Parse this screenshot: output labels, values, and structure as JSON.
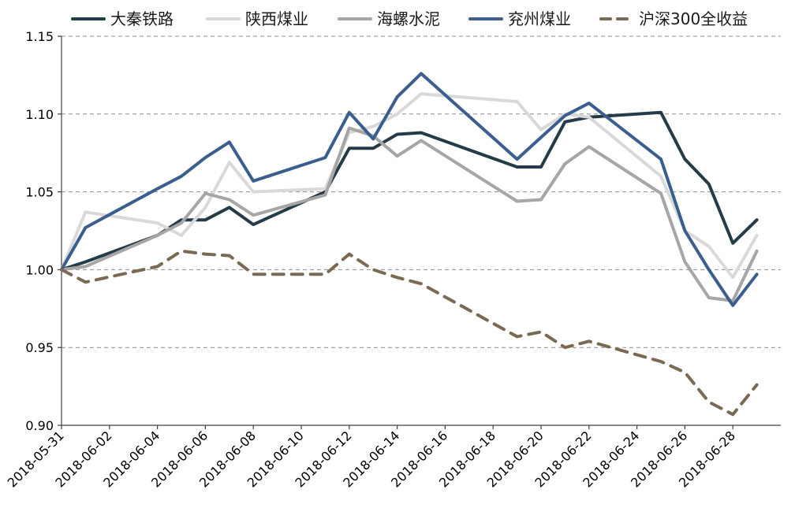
{
  "chart_data": {
    "type": "line",
    "title": "",
    "xlabel": "",
    "ylabel": "",
    "ylim": [
      0.9,
      1.15
    ],
    "yticks": [
      "0.90",
      "0.95",
      "1.00",
      "1.05",
      "1.10",
      "1.15"
    ],
    "ytick_values": [
      0.9,
      0.95,
      1.0,
      1.05,
      1.1,
      1.15
    ],
    "xticks": [
      "2018-05-31",
      "2018-06-02",
      "2018-06-04",
      "2018-06-06",
      "2018-06-08",
      "2018-06-10",
      "2018-06-12",
      "2018-06-14",
      "2018-06-16",
      "2018-06-18",
      "2018-06-20",
      "2018-06-22",
      "2018-06-24",
      "2018-06-26",
      "2018-06-28"
    ],
    "grid": "horizontal dashed",
    "legend_position": "top",
    "x": [
      "2018-05-31",
      "2018-06-01",
      "2018-06-04",
      "2018-06-05",
      "2018-06-06",
      "2018-06-07",
      "2018-06-08",
      "2018-06-11",
      "2018-06-12",
      "2018-06-13",
      "2018-06-14",
      "2018-06-15",
      "2018-06-19",
      "2018-06-20",
      "2018-06-21",
      "2018-06-22",
      "2018-06-25",
      "2018-06-26",
      "2018-06-27",
      "2018-06-28",
      "2018-06-29"
    ],
    "series": [
      {
        "name": "大秦铁路",
        "color": "#243b4a",
        "style": "solid",
        "values": [
          1.0,
          1.005,
          1.022,
          1.032,
          1.032,
          1.04,
          1.029,
          1.05,
          1.078,
          1.078,
          1.087,
          1.088,
          1.066,
          1.066,
          1.095,
          1.098,
          1.101,
          1.071,
          1.055,
          1.017,
          1.032
        ]
      },
      {
        "name": "陕西煤业",
        "color": "#d9d9d9",
        "style": "solid",
        "values": [
          1.0,
          1.037,
          1.03,
          1.022,
          1.04,
          1.069,
          1.05,
          1.052,
          1.088,
          1.092,
          1.1,
          1.113,
          1.108,
          1.09,
          1.1,
          1.098,
          1.06,
          1.025,
          1.015,
          0.995,
          1.022
        ]
      },
      {
        "name": "海螺水泥",
        "color": "#a6a6a6",
        "style": "solid",
        "values": [
          1.0,
          1.002,
          1.022,
          1.03,
          1.049,
          1.045,
          1.035,
          1.048,
          1.091,
          1.086,
          1.073,
          1.083,
          1.044,
          1.045,
          1.068,
          1.079,
          1.049,
          1.005,
          0.982,
          0.98,
          1.012
        ]
      },
      {
        "name": "兖州煤业",
        "color": "#3a5f8f",
        "style": "solid",
        "values": [
          1.0,
          1.027,
          1.052,
          1.06,
          1.072,
          1.082,
          1.057,
          1.072,
          1.101,
          1.084,
          1.111,
          1.126,
          1.071,
          1.085,
          1.099,
          1.107,
          1.071,
          1.025,
          1.0,
          0.977,
          0.997
        ]
      },
      {
        "name": "沪深300全收益",
        "color": "#7a6a52",
        "style": "dashed",
        "values": [
          1.0,
          0.992,
          1.002,
          1.012,
          1.01,
          1.009,
          0.997,
          0.997,
          1.01,
          1.0,
          0.995,
          0.991,
          0.957,
          0.96,
          0.95,
          0.954,
          0.941,
          0.934,
          0.915,
          0.907,
          0.926
        ]
      }
    ]
  }
}
